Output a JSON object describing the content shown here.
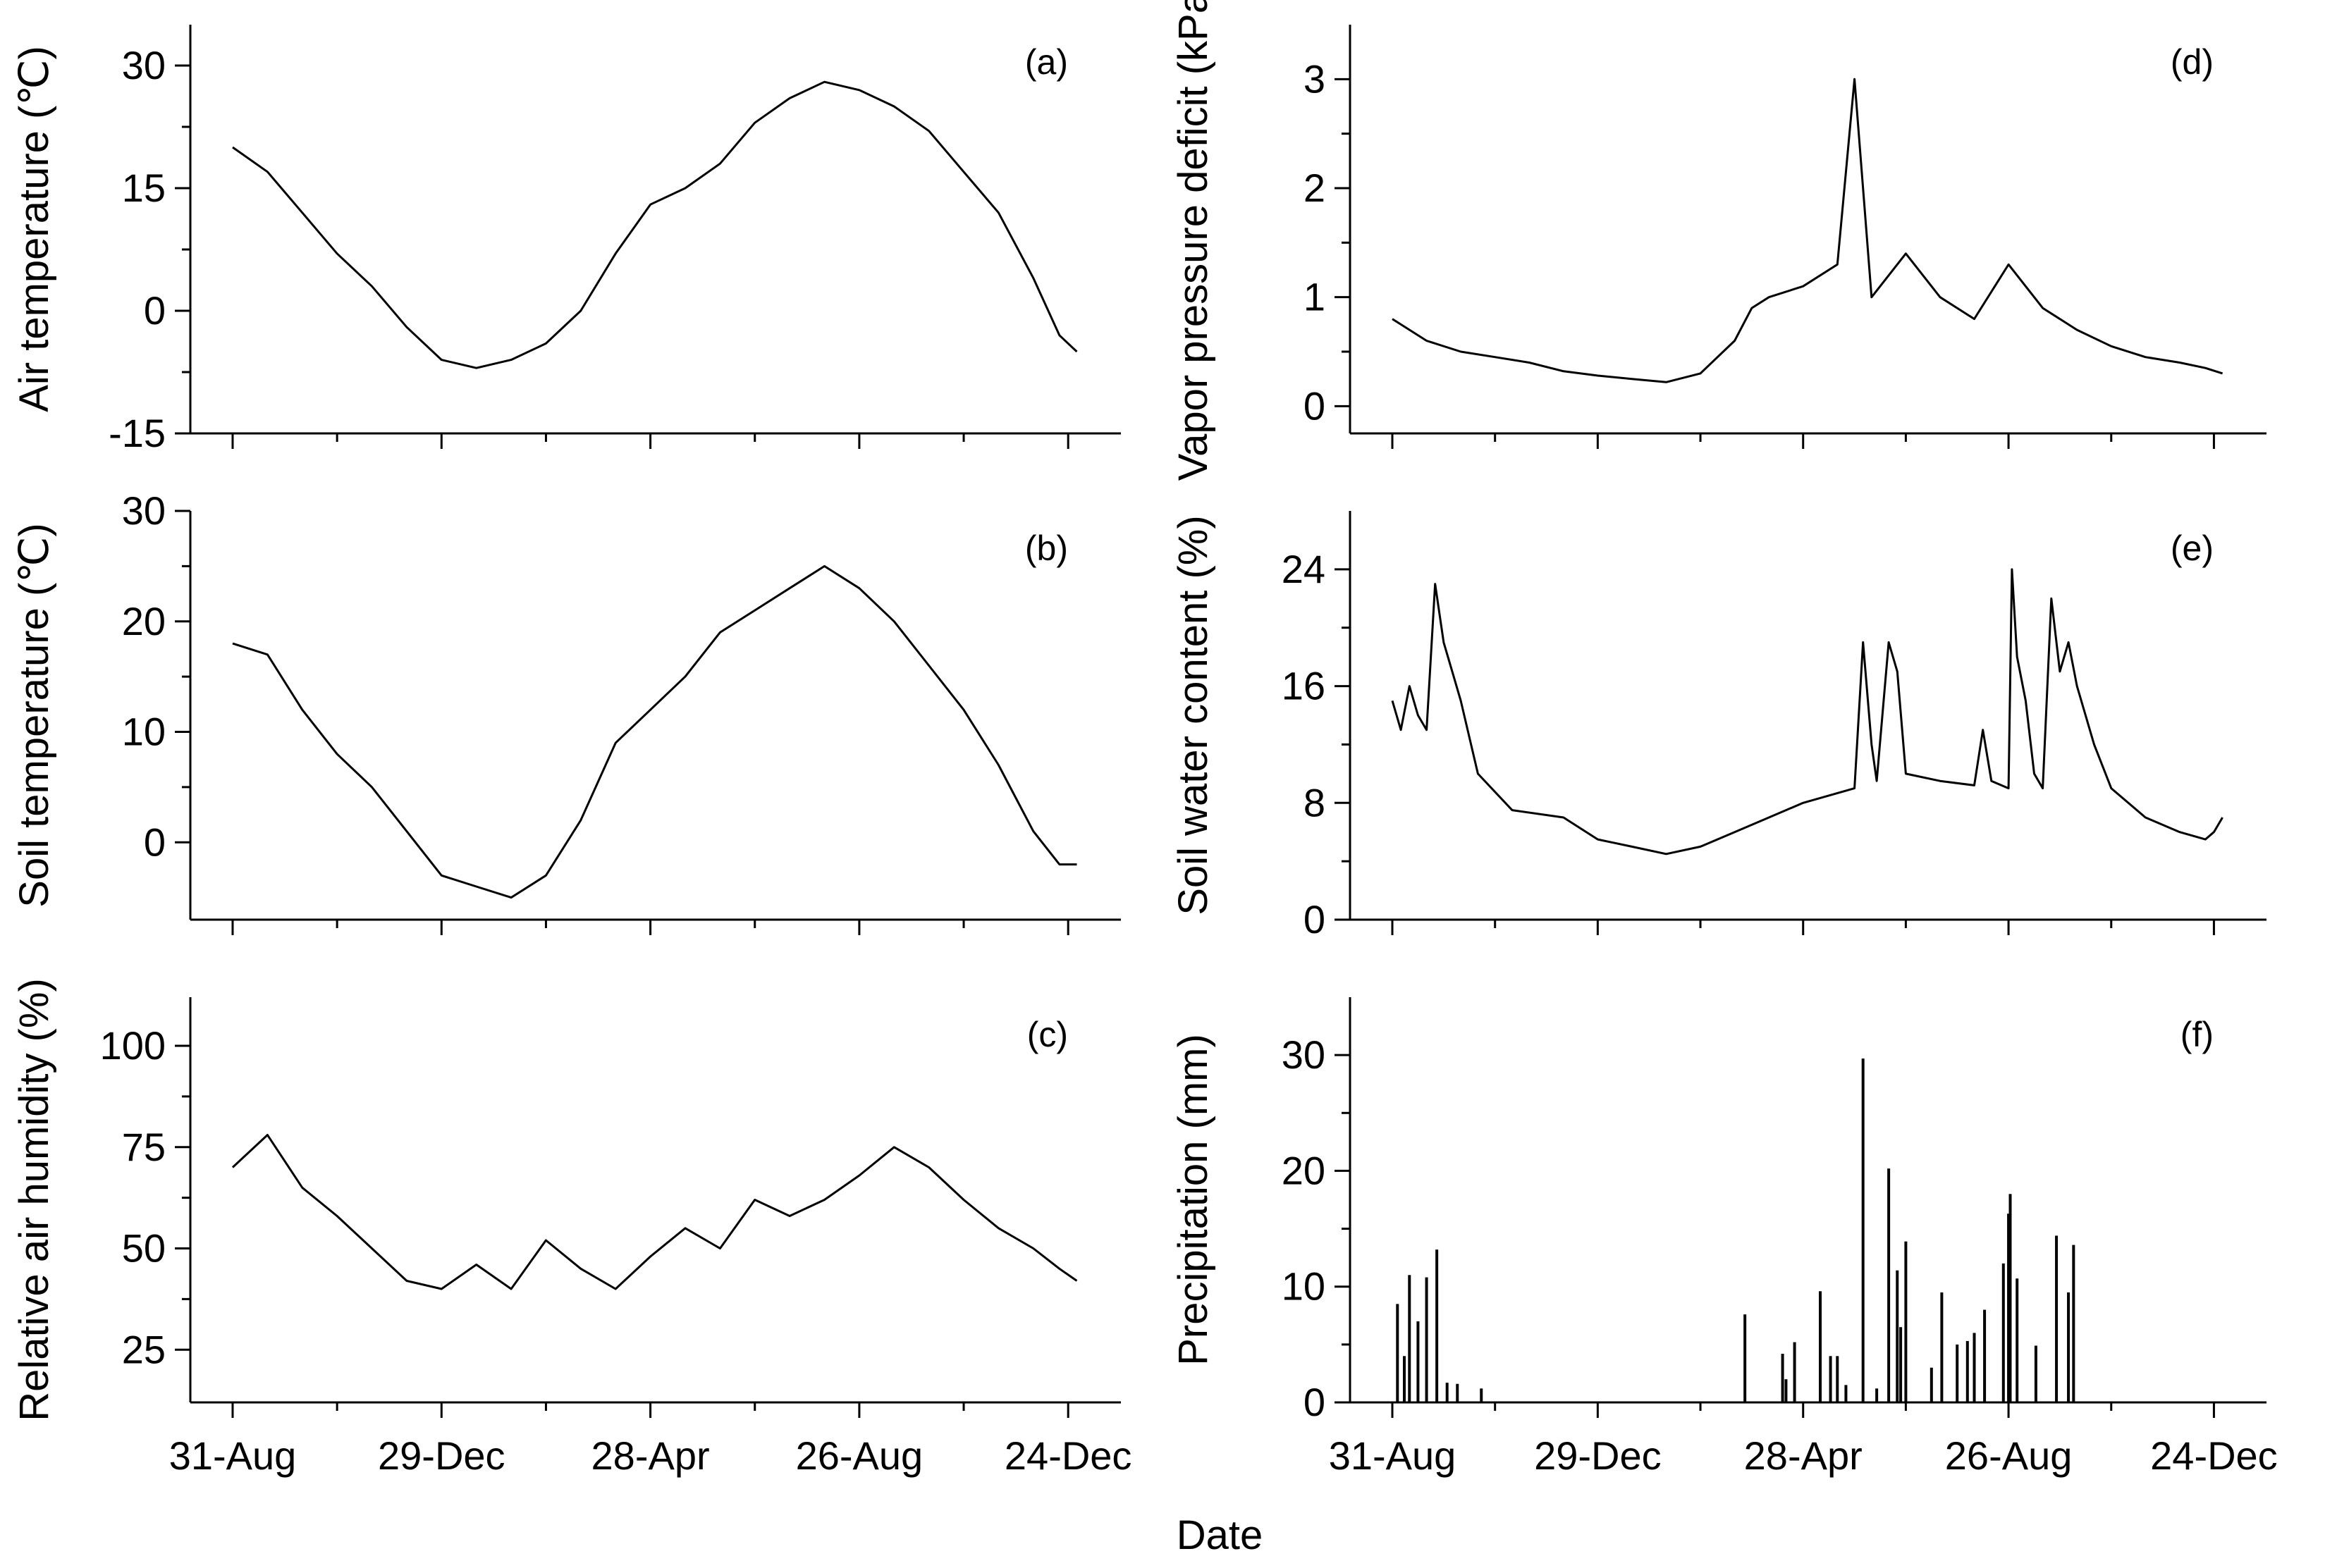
{
  "figure": {
    "xlabel": "Date"
  },
  "chart_data": [
    {
      "id": "a",
      "type": "line",
      "panel_label": "(a)",
      "ylabel": "Air temperature (℃)",
      "ylim": [
        -15,
        35
      ],
      "yticks": [
        -15,
        0,
        15,
        30
      ],
      "yticklabels": [
        "-15",
        "0",
        "15",
        "30"
      ],
      "xlim": [
        0,
        486
      ],
      "xticks": [
        0,
        120,
        240,
        360,
        480
      ],
      "xticklabels": [
        "31-Aug",
        "29-Dec",
        "28-Apr",
        "26-Aug",
        "24-Dec"
      ],
      "x": [
        0,
        20,
        40,
        60,
        80,
        100,
        120,
        140,
        160,
        180,
        200,
        220,
        240,
        260,
        280,
        300,
        320,
        340,
        360,
        380,
        400,
        420,
        440,
        460,
        475,
        485
      ],
      "values": [
        20,
        17,
        12,
        7,
        3,
        -2,
        -6,
        -7,
        -6,
        -4,
        0,
        7,
        13,
        15,
        18,
        23,
        26,
        28,
        27,
        25,
        22,
        17,
        12,
        4,
        -3,
        -5
      ]
    },
    {
      "id": "b",
      "type": "line",
      "panel_label": "(b)",
      "ylabel": "Soil temperature (℃)",
      "ylim": [
        -7,
        30
      ],
      "yticks": [
        0,
        10,
        20,
        30
      ],
      "yticklabels": [
        "0",
        "10",
        "20",
        "30"
      ],
      "xlim": [
        0,
        486
      ],
      "xticks": [
        0,
        120,
        240,
        360,
        480
      ],
      "xticklabels": [
        "31-Aug",
        "29-Dec",
        "28-Apr",
        "26-Aug",
        "24-Dec"
      ],
      "x": [
        0,
        20,
        40,
        60,
        80,
        100,
        120,
        140,
        160,
        180,
        200,
        220,
        240,
        260,
        280,
        300,
        320,
        340,
        360,
        380,
        400,
        420,
        440,
        460,
        475,
        485
      ],
      "values": [
        18,
        17,
        12,
        8,
        5,
        1,
        -3,
        -4,
        -5,
        -3,
        2,
        9,
        12,
        15,
        19,
        21,
        23,
        25,
        23,
        20,
        16,
        12,
        7,
        1,
        -2,
        -2
      ]
    },
    {
      "id": "c",
      "type": "line",
      "panel_label": "(c)",
      "ylabel": "Relative air humidity (%)",
      "ylim": [
        12,
        112
      ],
      "yticks": [
        25,
        50,
        75,
        100
      ],
      "yticklabels": [
        "25",
        "50",
        "75",
        "100"
      ],
      "xlim": [
        0,
        486
      ],
      "xticks": [
        0,
        120,
        240,
        360,
        480
      ],
      "xticklabels": [
        "31-Aug",
        "29-Dec",
        "28-Apr",
        "26-Aug",
        "24-Dec"
      ],
      "x": [
        0,
        20,
        40,
        60,
        80,
        100,
        120,
        140,
        160,
        180,
        200,
        220,
        240,
        260,
        280,
        300,
        320,
        340,
        360,
        380,
        400,
        420,
        440,
        460,
        475,
        485
      ],
      "values": [
        70,
        78,
        65,
        58,
        50,
        42,
        40,
        46,
        40,
        52,
        45,
        40,
        48,
        55,
        50,
        62,
        58,
        62,
        68,
        75,
        70,
        62,
        55,
        50,
        45,
        42
      ]
    },
    {
      "id": "d",
      "type": "line",
      "panel_label": "(d)",
      "ylabel": "Vapor pressure deficit (kPa)",
      "ylim": [
        -0.25,
        3.5
      ],
      "yticks": [
        0,
        1,
        2,
        3
      ],
      "yticklabels": [
        "0",
        "1",
        "2",
        "3"
      ],
      "xlim": [
        0,
        486
      ],
      "xticks": [
        0,
        120,
        240,
        360,
        480
      ],
      "xticklabels": [
        "31-Aug",
        "29-Dec",
        "28-Apr",
        "26-Aug",
        "24-Dec"
      ],
      "x": [
        0,
        20,
        40,
        60,
        80,
        100,
        120,
        140,
        160,
        180,
        200,
        210,
        220,
        240,
        260,
        270,
        280,
        300,
        320,
        340,
        360,
        380,
        400,
        420,
        440,
        460,
        475,
        485
      ],
      "values": [
        0.8,
        0.6,
        0.5,
        0.45,
        0.4,
        0.32,
        0.28,
        0.25,
        0.22,
        0.3,
        0.6,
        0.9,
        1.0,
        1.1,
        1.3,
        3.0,
        1.0,
        1.4,
        1.0,
        0.8,
        1.3,
        0.9,
        0.7,
        0.55,
        0.45,
        0.4,
        0.35,
        0.3
      ]
    },
    {
      "id": "e",
      "type": "line",
      "panel_label": "(e)",
      "ylabel": "Soil water content (%)",
      "ylim": [
        0,
        28
      ],
      "yticks": [
        0,
        8,
        16,
        24
      ],
      "yticklabels": [
        "0",
        "8",
        "16",
        "24"
      ],
      "xlim": [
        0,
        486
      ],
      "xticks": [
        0,
        120,
        240,
        360,
        480
      ],
      "xticklabels": [
        "31-Aug",
        "29-Dec",
        "28-Apr",
        "26-Aug",
        "24-Dec"
      ],
      "x": [
        0,
        5,
        10,
        15,
        20,
        25,
        30,
        35,
        40,
        50,
        70,
        100,
        120,
        140,
        160,
        180,
        200,
        220,
        240,
        270,
        275,
        280,
        283,
        290,
        295,
        300,
        320,
        340,
        345,
        350,
        360,
        362,
        365,
        370,
        375,
        380,
        385,
        390,
        395,
        400,
        410,
        420,
        440,
        460,
        475,
        480,
        485
      ],
      "values": [
        15,
        13,
        16,
        14,
        13,
        23,
        19,
        17,
        15,
        10,
        7.5,
        7,
        5.5,
        5,
        4.5,
        5,
        6,
        7,
        8,
        9,
        19,
        12,
        9.5,
        19,
        17,
        10,
        9.5,
        9.2,
        13,
        9.5,
        9,
        24,
        18,
        15,
        10,
        9,
        22,
        17,
        19,
        16,
        12,
        9,
        7,
        6,
        5.5,
        6,
        7
      ]
    },
    {
      "id": "f",
      "type": "bar",
      "panel_label": "(f)",
      "ylabel": "Precipitation (mm)",
      "ylim": [
        0,
        35
      ],
      "yticks": [
        0,
        10,
        20,
        30
      ],
      "yticklabels": [
        "0",
        "10",
        "20",
        "30"
      ],
      "xlim": [
        0,
        486
      ],
      "xticks": [
        0,
        120,
        240,
        360,
        480
      ],
      "xticklabels": [
        "31-Aug",
        "29-Dec",
        "28-Apr",
        "26-Aug",
        "24-Dec"
      ],
      "x": [
        3,
        7,
        10,
        15,
        20,
        26,
        32,
        38,
        52,
        206,
        228,
        230,
        235,
        250,
        256,
        260,
        265,
        275,
        283,
        290,
        295,
        297,
        300,
        315,
        321,
        330,
        336,
        340,
        346,
        357,
        360,
        361,
        365,
        376,
        388,
        395,
        398
      ],
      "values": [
        8.5,
        4,
        11,
        7,
        10.8,
        13.2,
        1.7,
        1.6,
        1.2,
        7.6,
        4.2,
        2,
        5.2,
        9.6,
        4,
        4,
        1.5,
        29.7,
        1.2,
        20.2,
        11.4,
        6.5,
        13.9,
        3,
        9.5,
        5,
        5.3,
        6,
        8,
        12,
        16.3,
        18,
        10.7,
        4.9,
        14.4,
        9.5,
        13.6
      ]
    }
  ]
}
